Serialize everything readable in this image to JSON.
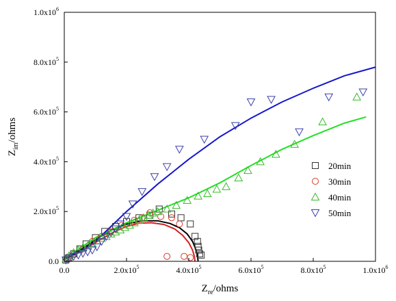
{
  "chart_data": {
    "type": "scatter",
    "title": "",
    "xlabel": {
      "main": "Z",
      "sub": "re",
      "unit": "/ohms"
    },
    "ylabel": {
      "main": "Z",
      "sub": "im",
      "unit": "/ohms"
    },
    "xlim": [
      0,
      1000000
    ],
    "ylim": [
      0,
      1000000
    ],
    "x_ticks": [
      {
        "value": 0,
        "mant": "0.0",
        "exp": ""
      },
      {
        "value": 200000,
        "mant": "2.0x10",
        "exp": "5"
      },
      {
        "value": 400000,
        "mant": "4.0x10",
        "exp": "5"
      },
      {
        "value": 600000,
        "mant": "6.0x10",
        "exp": "5"
      },
      {
        "value": 800000,
        "mant": "8.0x10",
        "exp": "5"
      },
      {
        "value": 1000000,
        "mant": "1.0x10",
        "exp": "6"
      }
    ],
    "y_ticks": [
      {
        "value": 0,
        "mant": "0.0",
        "exp": ""
      },
      {
        "value": 200000,
        "mant": "2.0x10",
        "exp": "5"
      },
      {
        "value": 400000,
        "mant": "4.0x10",
        "exp": "5"
      },
      {
        "value": 600000,
        "mant": "6.0x10",
        "exp": "5"
      },
      {
        "value": 800000,
        "mant": "8.0x10",
        "exp": "5"
      },
      {
        "value": 1000000,
        "mant": "1.0x10",
        "exp": "6"
      }
    ],
    "grid": false,
    "legend_position": "right-center",
    "series": [
      {
        "name": "20min",
        "marker": "square",
        "color": "#333333",
        "fit_color": "#000000",
        "points": [
          [
            5000,
            5000
          ],
          [
            15000,
            15000
          ],
          [
            30000,
            30000
          ],
          [
            50000,
            50000
          ],
          [
            70000,
            70000
          ],
          [
            100000,
            95000
          ],
          [
            130000,
            120000
          ],
          [
            165000,
            140000
          ],
          [
            200000,
            160000
          ],
          [
            240000,
            175000
          ],
          [
            275000,
            185000
          ],
          [
            305000,
            210000
          ],
          [
            345000,
            190000
          ],
          [
            375000,
            175000
          ],
          [
            405000,
            150000
          ],
          [
            420000,
            100000
          ],
          [
            428000,
            80000
          ],
          [
            430000,
            60000
          ],
          [
            432000,
            45000
          ],
          [
            435000,
            30000
          ],
          [
            440000,
            25000
          ]
        ],
        "fit": [
          [
            0,
            10000
          ],
          [
            30000,
            30000
          ],
          [
            70000,
            60000
          ],
          [
            110000,
            95000
          ],
          [
            150000,
            125000
          ],
          [
            200000,
            150000
          ],
          [
            250000,
            163000
          ],
          [
            300000,
            163000
          ],
          [
            340000,
            152000
          ],
          [
            370000,
            135000
          ],
          [
            395000,
            110000
          ],
          [
            412000,
            80000
          ],
          [
            422000,
            50000
          ],
          [
            428000,
            25000
          ],
          [
            430000,
            0
          ]
        ]
      },
      {
        "name": "30min",
        "marker": "circle",
        "color": "#d63b2b",
        "fit_color": "#d42020",
        "points": [
          [
            10000,
            8000
          ],
          [
            30000,
            28000
          ],
          [
            60000,
            50000
          ],
          [
            90000,
            80000
          ],
          [
            120000,
            100000
          ],
          [
            150000,
            120000
          ],
          [
            185000,
            145000
          ],
          [
            225000,
            165000
          ],
          [
            250000,
            175000
          ],
          [
            275000,
            195000
          ],
          [
            310000,
            180000
          ],
          [
            345000,
            175000
          ],
          [
            370000,
            150000
          ],
          [
            330000,
            20000
          ],
          [
            385000,
            20000
          ],
          [
            405000,
            15000
          ]
        ],
        "fit": [
          [
            0,
            8000
          ],
          [
            40000,
            30000
          ],
          [
            80000,
            60000
          ],
          [
            120000,
            90000
          ],
          [
            160000,
            118000
          ],
          [
            200000,
            140000
          ],
          [
            240000,
            153000
          ],
          [
            280000,
            155000
          ],
          [
            320000,
            148000
          ],
          [
            355000,
            130000
          ],
          [
            380000,
            105000
          ],
          [
            400000,
            75000
          ],
          [
            412000,
            45000
          ],
          [
            418000,
            20000
          ],
          [
            420000,
            0
          ]
        ]
      },
      {
        "name": "40min",
        "marker": "triangle-up",
        "color": "#38b82a",
        "fit_color": "#22e022",
        "points": [
          [
            5000,
            10000
          ],
          [
            15000,
            22000
          ],
          [
            30000,
            35000
          ],
          [
            45000,
            45000
          ],
          [
            60000,
            55000
          ],
          [
            75000,
            62000
          ],
          [
            90000,
            72000
          ],
          [
            105000,
            82000
          ],
          [
            120000,
            92000
          ],
          [
            135000,
            100000
          ],
          [
            150000,
            110000
          ],
          [
            165000,
            118000
          ],
          [
            180000,
            126000
          ],
          [
            195000,
            136000
          ],
          [
            210000,
            145000
          ],
          [
            225000,
            155000
          ],
          [
            240000,
            165000
          ],
          [
            255000,
            175000
          ],
          [
            270000,
            185000
          ],
          [
            285000,
            194000
          ],
          [
            300000,
            200000
          ],
          [
            330000,
            210000
          ],
          [
            360000,
            225000
          ],
          [
            395000,
            245000
          ],
          [
            430000,
            262000
          ],
          [
            460000,
            272000
          ],
          [
            490000,
            290000
          ],
          [
            520000,
            300000
          ],
          [
            560000,
            335000
          ],
          [
            590000,
            365000
          ],
          [
            630000,
            400000
          ],
          [
            680000,
            430000
          ],
          [
            740000,
            470000
          ],
          [
            830000,
            560000
          ],
          [
            940000,
            660000
          ]
        ],
        "fit": [
          [
            0,
            10000
          ],
          [
            100000,
            95000
          ],
          [
            200000,
            155000
          ],
          [
            300000,
            205000
          ],
          [
            400000,
            255000
          ],
          [
            500000,
            315000
          ],
          [
            600000,
            385000
          ],
          [
            700000,
            450000
          ],
          [
            800000,
            505000
          ],
          [
            900000,
            555000
          ],
          [
            970000,
            580000
          ]
        ]
      },
      {
        "name": "50min",
        "marker": "triangle-down",
        "color": "#3b3fa8",
        "fit_color": "#1515cc",
        "points": [
          [
            5000,
            5000
          ],
          [
            15000,
            12000
          ],
          [
            30000,
            20000
          ],
          [
            45000,
            25000
          ],
          [
            60000,
            32000
          ],
          [
            75000,
            38000
          ],
          [
            90000,
            45000
          ],
          [
            105000,
            58000
          ],
          [
            120000,
            80000
          ],
          [
            135000,
            100000
          ],
          [
            150000,
            115000
          ],
          [
            165000,
            130000
          ],
          [
            180000,
            150000
          ],
          [
            200000,
            180000
          ],
          [
            220000,
            230000
          ],
          [
            250000,
            280000
          ],
          [
            290000,
            340000
          ],
          [
            330000,
            380000
          ],
          [
            370000,
            450000
          ],
          [
            450000,
            490000
          ],
          [
            550000,
            545000
          ],
          [
            600000,
            640000
          ],
          [
            665000,
            650000
          ],
          [
            755000,
            520000
          ],
          [
            850000,
            660000
          ],
          [
            960000,
            680000
          ]
        ],
        "fit": [
          [
            0,
            10000
          ],
          [
            50000,
            40000
          ],
          [
            100000,
            80000
          ],
          [
            150000,
            140000
          ],
          [
            200000,
            200000
          ],
          [
            300000,
            310000
          ],
          [
            400000,
            410000
          ],
          [
            500000,
            500000
          ],
          [
            600000,
            575000
          ],
          [
            700000,
            640000
          ],
          [
            800000,
            695000
          ],
          [
            900000,
            745000
          ],
          [
            1000000,
            780000
          ]
        ]
      }
    ]
  }
}
